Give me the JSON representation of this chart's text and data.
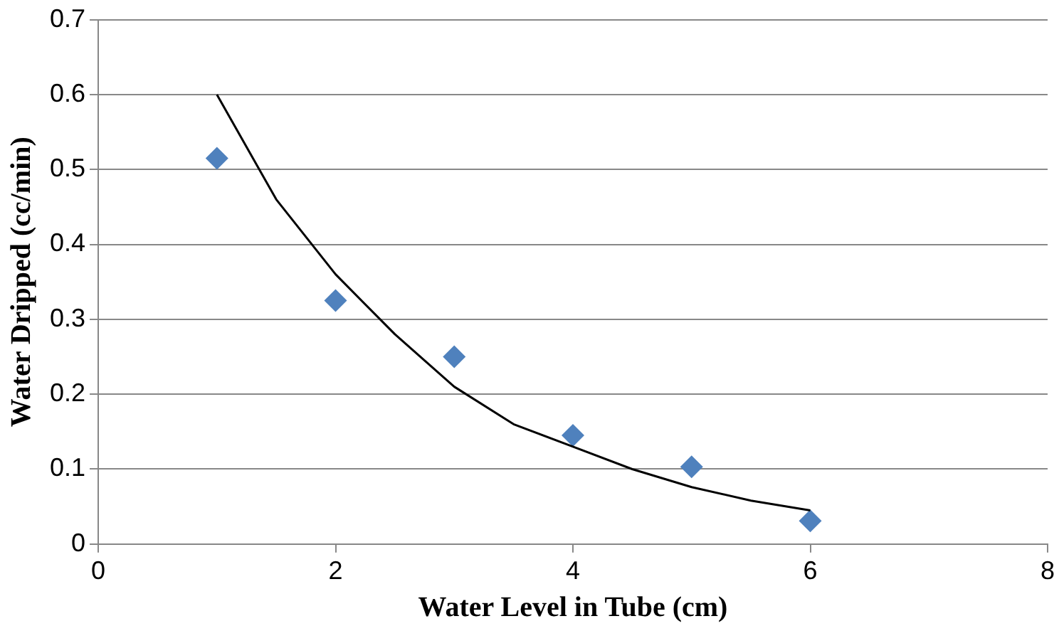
{
  "chart_data": {
    "type": "scatter",
    "xlabel": "Water Level in Tube (cm)",
    "ylabel": "Water Dripped (cc/min)",
    "x": [
      1,
      2,
      3,
      4,
      5,
      6
    ],
    "series": [
      {
        "color": "#4f81bd",
        "marker": "diamond",
        "values": [
          0.515,
          0.325,
          0.25,
          0.145,
          0.103,
          0.031
        ]
      },
      {
        "type": "line",
        "color": "#000000",
        "marker": "none",
        "x": [
          1,
          1.5,
          2,
          2.5,
          3,
          3.5,
          4,
          4.5,
          5,
          5.5,
          6
        ],
        "values": [
          0.6,
          0.46,
          0.36,
          0.28,
          0.21,
          0.16,
          0.13,
          0.1,
          0.076,
          0.058,
          0.045
        ]
      }
    ],
    "xlim": [
      0,
      8
    ],
    "xticks": [
      0,
      2,
      4,
      6,
      8
    ],
    "ylim": [
      0,
      0.7
    ],
    "yticks": [
      0,
      0.1,
      0.2,
      0.3,
      0.4,
      0.5,
      0.6,
      0.7
    ],
    "grid": "y",
    "legend": false
  }
}
